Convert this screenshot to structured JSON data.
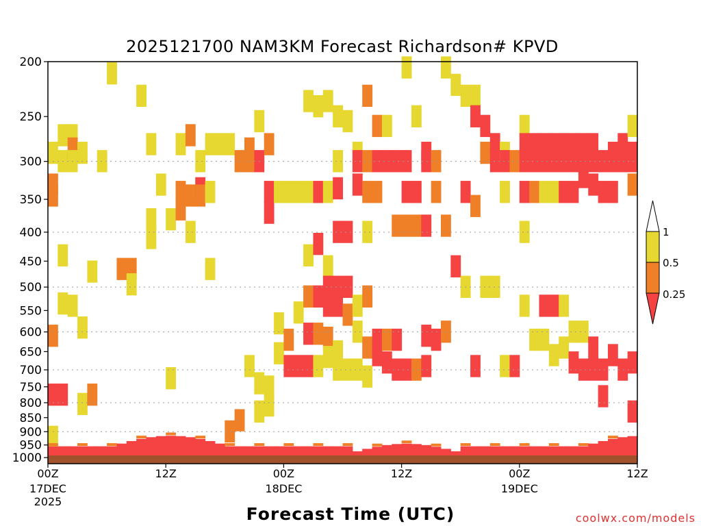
{
  "chart_data": {
    "type": "heatmap",
    "title": "2025121700 NAM3KM Forecast Richardson# KPVD",
    "xlabel": "Forecast Time (UTC)",
    "ylabel": "",
    "y_scale": "log",
    "y_reversed": true,
    "ylim": [
      1025,
      200
    ],
    "y_ticks": [
      200,
      250,
      300,
      350,
      400,
      450,
      500,
      550,
      600,
      650,
      700,
      750,
      800,
      850,
      900,
      950,
      1000
    ],
    "y_gridlines": [
      300,
      400,
      500,
      600,
      700,
      800,
      900
    ],
    "grid": "dotted horizontal",
    "x_hours": [
      0,
      60
    ],
    "x_ticks": [
      {
        "hour": 0,
        "label": "00Z",
        "sub": [
          "17DEC",
          "2025"
        ]
      },
      {
        "hour": 12,
        "label": "12Z",
        "sub": []
      },
      {
        "hour": 24,
        "label": "00Z",
        "sub": [
          "18DEC"
        ]
      },
      {
        "hour": 36,
        "label": "12Z",
        "sub": []
      },
      {
        "hour": 48,
        "label": "00Z",
        "sub": [
          "19DEC"
        ]
      },
      {
        "hour": 60,
        "label": "12Z",
        "sub": []
      }
    ],
    "legend": {
      "placement": "right",
      "labels": [
        "1",
        "0.5",
        "0.25"
      ],
      "classes": [
        {
          "range": "< 0.25",
          "color": "#f54242"
        },
        {
          "range": "0.25 - 0.5",
          "color": "#f08028"
        },
        {
          "range": "0.5 - 1",
          "color": "#e6d830"
        },
        {
          "range": "> 1",
          "color": "#ffffff"
        }
      ]
    },
    "ground_color": "#a0522d",
    "cells": [
      {
        "h": 0,
        "p": 290,
        "c": 2
      },
      {
        "h": 0,
        "p": 330,
        "c": 1
      },
      {
        "h": 0,
        "p": 345,
        "c": 1
      },
      {
        "h": 0,
        "p": 610,
        "c": 1
      },
      {
        "h": 0,
        "p": 775,
        "c": 0
      },
      {
        "h": 0,
        "p": 920,
        "c": 2
      },
      {
        "h": 1,
        "p": 270,
        "c": 2
      },
      {
        "h": 1,
        "p": 300,
        "c": 2
      },
      {
        "h": 1,
        "p": 440,
        "c": 2
      },
      {
        "h": 1,
        "p": 535,
        "c": 2
      },
      {
        "h": 1,
        "p": 775,
        "c": 0
      },
      {
        "h": 2,
        "p": 270,
        "c": 2
      },
      {
        "h": 2,
        "p": 285,
        "c": 1
      },
      {
        "h": 2,
        "p": 300,
        "c": 2
      },
      {
        "h": 2,
        "p": 540,
        "c": 2
      },
      {
        "h": 3,
        "p": 290,
        "c": 2
      },
      {
        "h": 3,
        "p": 590,
        "c": 2
      },
      {
        "h": 3,
        "p": 805,
        "c": 2
      },
      {
        "h": 4,
        "p": 470,
        "c": 2
      },
      {
        "h": 4,
        "p": 775,
        "c": 1
      },
      {
        "h": 5,
        "p": 300,
        "c": 2
      },
      {
        "h": 6,
        "p": 210,
        "c": 2
      },
      {
        "h": 7,
        "p": 465,
        "c": 1
      },
      {
        "h": 8,
        "p": 465,
        "c": 1
      },
      {
        "h": 8,
        "p": 495,
        "c": 2
      },
      {
        "h": 9,
        "p": 230,
        "c": 2
      },
      {
        "h": 10,
        "p": 280,
        "c": 2
      },
      {
        "h": 10,
        "p": 380,
        "c": 2
      },
      {
        "h": 10,
        "p": 410,
        "c": 2
      },
      {
        "h": 11,
        "p": 330,
        "c": 2
      },
      {
        "h": 12,
        "p": 380,
        "c": 2
      },
      {
        "h": 12,
        "p": 725,
        "c": 2
      },
      {
        "h": 13,
        "p": 280,
        "c": 2
      },
      {
        "h": 13,
        "p": 340,
        "c": 1
      },
      {
        "h": 13,
        "p": 365,
        "c": 1
      },
      {
        "h": 14,
        "p": 270,
        "c": 1
      },
      {
        "h": 14,
        "p": 345,
        "c": 1
      },
      {
        "h": 14,
        "p": 400,
        "c": 2
      },
      {
        "h": 15,
        "p": 300,
        "c": 2
      },
      {
        "h": 15,
        "p": 335,
        "c": 0
      },
      {
        "h": 15,
        "p": 345,
        "c": 1
      },
      {
        "h": 16,
        "p": 280,
        "c": 2
      },
      {
        "h": 16,
        "p": 340,
        "c": 2
      },
      {
        "h": 16,
        "p": 465,
        "c": 2
      },
      {
        "h": 17,
        "p": 280,
        "c": 2
      },
      {
        "h": 18,
        "p": 280,
        "c": 2
      },
      {
        "h": 18,
        "p": 900,
        "c": 1
      },
      {
        "h": 19,
        "p": 300,
        "c": 1
      },
      {
        "h": 19,
        "p": 860,
        "c": 1
      },
      {
        "h": 20,
        "p": 285,
        "c": 1
      },
      {
        "h": 20,
        "p": 300,
        "c": 1
      },
      {
        "h": 20,
        "p": 690,
        "c": 2
      },
      {
        "h": 21,
        "p": 255,
        "c": 2
      },
      {
        "h": 21,
        "p": 300,
        "c": 0
      },
      {
        "h": 21,
        "p": 740,
        "c": 2
      },
      {
        "h": 21,
        "p": 830,
        "c": 2
      },
      {
        "h": 22,
        "p": 280,
        "c": 1
      },
      {
        "h": 22,
        "p": 340,
        "c": 0
      },
      {
        "h": 22,
        "p": 370,
        "c": 0
      },
      {
        "h": 22,
        "p": 750,
        "c": 2
      },
      {
        "h": 22,
        "p": 810,
        "c": 2
      },
      {
        "h": 23,
        "p": 340,
        "c": 2
      },
      {
        "h": 23,
        "p": 580,
        "c": 2
      },
      {
        "h": 23,
        "p": 655,
        "c": 2
      },
      {
        "h": 24,
        "p": 340,
        "c": 2
      },
      {
        "h": 24,
        "p": 620,
        "c": 1
      },
      {
        "h": 24,
        "p": 690,
        "c": 0
      },
      {
        "h": 25,
        "p": 340,
        "c": 2
      },
      {
        "h": 25,
        "p": 555,
        "c": 2
      },
      {
        "h": 25,
        "p": 690,
        "c": 0
      },
      {
        "h": 26,
        "p": 235,
        "c": 2
      },
      {
        "h": 26,
        "p": 340,
        "c": 2
      },
      {
        "h": 26,
        "p": 440,
        "c": 2
      },
      {
        "h": 26,
        "p": 520,
        "c": 1
      },
      {
        "h": 26,
        "p": 605,
        "c": 0
      },
      {
        "h": 26,
        "p": 690,
        "c": 0
      },
      {
        "h": 27,
        "p": 240,
        "c": 2
      },
      {
        "h": 27,
        "p": 340,
        "c": 0
      },
      {
        "h": 27,
        "p": 420,
        "c": 0
      },
      {
        "h": 27,
        "p": 520,
        "c": 0
      },
      {
        "h": 27,
        "p": 605,
        "c": 1
      },
      {
        "h": 27,
        "p": 690,
        "c": 2
      },
      {
        "h": 28,
        "p": 235,
        "c": 2
      },
      {
        "h": 28,
        "p": 340,
        "c": 2
      },
      {
        "h": 28,
        "p": 460,
        "c": 2
      },
      {
        "h": 28,
        "p": 500,
        "c": 0
      },
      {
        "h": 28,
        "p": 540,
        "c": 0
      },
      {
        "h": 28,
        "p": 615,
        "c": 1
      },
      {
        "h": 28,
        "p": 665,
        "c": 2
      },
      {
        "h": 29,
        "p": 250,
        "c": 2
      },
      {
        "h": 29,
        "p": 300,
        "c": 2
      },
      {
        "h": 29,
        "p": 335,
        "c": 0
      },
      {
        "h": 29,
        "p": 400,
        "c": 0
      },
      {
        "h": 29,
        "p": 500,
        "c": 0
      },
      {
        "h": 29,
        "p": 540,
        "c": 0
      },
      {
        "h": 29,
        "p": 650,
        "c": 2
      },
      {
        "h": 29,
        "p": 700,
        "c": 2
      },
      {
        "h": 30,
        "p": 255,
        "c": 2
      },
      {
        "h": 30,
        "p": 400,
        "c": 0
      },
      {
        "h": 30,
        "p": 500,
        "c": 0
      },
      {
        "h": 30,
        "p": 560,
        "c": 1
      },
      {
        "h": 30,
        "p": 700,
        "c": 2
      },
      {
        "h": 31,
        "p": 290,
        "c": 2
      },
      {
        "h": 31,
        "p": 300,
        "c": 0
      },
      {
        "h": 31,
        "p": 330,
        "c": 0
      },
      {
        "h": 31,
        "p": 540,
        "c": 2
      },
      {
        "h": 31,
        "p": 600,
        "c": 2
      },
      {
        "h": 31,
        "p": 700,
        "c": 2
      },
      {
        "h": 32,
        "p": 230,
        "c": 1
      },
      {
        "h": 32,
        "p": 300,
        "c": 1
      },
      {
        "h": 32,
        "p": 340,
        "c": 1
      },
      {
        "h": 32,
        "p": 400,
        "c": 2
      },
      {
        "h": 32,
        "p": 520,
        "c": 1
      },
      {
        "h": 32,
        "p": 640,
        "c": 1
      },
      {
        "h": 32,
        "p": 720,
        "c": 2
      },
      {
        "h": 33,
        "p": 260,
        "c": 1
      },
      {
        "h": 33,
        "p": 300,
        "c": 0
      },
      {
        "h": 33,
        "p": 340,
        "c": 1
      },
      {
        "h": 33,
        "p": 620,
        "c": 0
      },
      {
        "h": 33,
        "p": 660,
        "c": 0
      },
      {
        "h": 34,
        "p": 260,
        "c": 2
      },
      {
        "h": 34,
        "p": 300,
        "c": 0
      },
      {
        "h": 34,
        "p": 620,
        "c": 1
      },
      {
        "h": 34,
        "p": 680,
        "c": 0
      },
      {
        "h": 35,
        "p": 300,
        "c": 0
      },
      {
        "h": 35,
        "p": 390,
        "c": 1
      },
      {
        "h": 35,
        "p": 620,
        "c": 0
      },
      {
        "h": 35,
        "p": 700,
        "c": 0
      },
      {
        "h": 36,
        "p": 205,
        "c": 2
      },
      {
        "h": 36,
        "p": 300,
        "c": 0
      },
      {
        "h": 36,
        "p": 340,
        "c": 0
      },
      {
        "h": 36,
        "p": 390,
        "c": 1
      },
      {
        "h": 36,
        "p": 700,
        "c": 0
      },
      {
        "h": 37,
        "p": 250,
        "c": 2
      },
      {
        "h": 37,
        "p": 340,
        "c": 0
      },
      {
        "h": 37,
        "p": 390,
        "c": 1
      },
      {
        "h": 37,
        "p": 700,
        "c": 1
      },
      {
        "h": 38,
        "p": 290,
        "c": 0
      },
      {
        "h": 38,
        "p": 300,
        "c": 0
      },
      {
        "h": 38,
        "p": 390,
        "c": 0
      },
      {
        "h": 38,
        "p": 610,
        "c": 0
      },
      {
        "h": 38,
        "p": 690,
        "c": 0
      },
      {
        "h": 39,
        "p": 300,
        "c": 1
      },
      {
        "h": 39,
        "p": 340,
        "c": 1
      },
      {
        "h": 39,
        "p": 620,
        "c": 0
      },
      {
        "h": 40,
        "p": 205,
        "c": 2
      },
      {
        "h": 40,
        "p": 390,
        "c": 1
      },
      {
        "h": 40,
        "p": 600,
        "c": 1
      },
      {
        "h": 41,
        "p": 220,
        "c": 2
      },
      {
        "h": 41,
        "p": 460,
        "c": 0
      },
      {
        "h": 42,
        "p": 230,
        "c": 2
      },
      {
        "h": 42,
        "p": 340,
        "c": 0
      },
      {
        "h": 42,
        "p": 500,
        "c": 2
      },
      {
        "h": 43,
        "p": 230,
        "c": 2
      },
      {
        "h": 43,
        "p": 250,
        "c": 0
      },
      {
        "h": 43,
        "p": 360,
        "c": 1
      },
      {
        "h": 43,
        "p": 690,
        "c": 0
      },
      {
        "h": 44,
        "p": 260,
        "c": 0
      },
      {
        "h": 44,
        "p": 290,
        "c": 1
      },
      {
        "h": 44,
        "p": 500,
        "c": 2
      },
      {
        "h": 45,
        "p": 280,
        "c": 0
      },
      {
        "h": 45,
        "p": 300,
        "c": 0
      },
      {
        "h": 45,
        "p": 500,
        "c": 2
      },
      {
        "h": 46,
        "p": 290,
        "c": 2
      },
      {
        "h": 46,
        "p": 300,
        "c": 0
      },
      {
        "h": 46,
        "p": 340,
        "c": 2
      },
      {
        "h": 46,
        "p": 690,
        "c": 2
      },
      {
        "h": 47,
        "p": 300,
        "c": 1
      },
      {
        "h": 47,
        "p": 690,
        "c": 0
      },
      {
        "h": 48,
        "p": 260,
        "c": 2
      },
      {
        "h": 48,
        "p": 280,
        "c": 0
      },
      {
        "h": 48,
        "p": 300,
        "c": 0
      },
      {
        "h": 48,
        "p": 340,
        "c": 0
      },
      {
        "h": 48,
        "p": 400,
        "c": 2
      },
      {
        "h": 48,
        "p": 540,
        "c": 2
      },
      {
        "h": 49,
        "p": 280,
        "c": 0
      },
      {
        "h": 49,
        "p": 300,
        "c": 0
      },
      {
        "h": 49,
        "p": 340,
        "c": 1
      },
      {
        "h": 49,
        "p": 620,
        "c": 2
      },
      {
        "h": 50,
        "p": 280,
        "c": 0
      },
      {
        "h": 50,
        "p": 300,
        "c": 0
      },
      {
        "h": 50,
        "p": 340,
        "c": 2
      },
      {
        "h": 50,
        "p": 540,
        "c": 0
      },
      {
        "h": 50,
        "p": 620,
        "c": 2
      },
      {
        "h": 51,
        "p": 280,
        "c": 0
      },
      {
        "h": 51,
        "p": 300,
        "c": 0
      },
      {
        "h": 51,
        "p": 340,
        "c": 2
      },
      {
        "h": 51,
        "p": 540,
        "c": 0
      },
      {
        "h": 51,
        "p": 660,
        "c": 2
      },
      {
        "h": 52,
        "p": 280,
        "c": 0
      },
      {
        "h": 52,
        "p": 300,
        "c": 0
      },
      {
        "h": 52,
        "p": 340,
        "c": 0
      },
      {
        "h": 52,
        "p": 540,
        "c": 2
      },
      {
        "h": 52,
        "p": 640,
        "c": 2
      },
      {
        "h": 53,
        "p": 280,
        "c": 0
      },
      {
        "h": 53,
        "p": 300,
        "c": 0
      },
      {
        "h": 53,
        "p": 340,
        "c": 0
      },
      {
        "h": 53,
        "p": 600,
        "c": 2
      },
      {
        "h": 53,
        "p": 680,
        "c": 0
      },
      {
        "h": 54,
        "p": 280,
        "c": 0
      },
      {
        "h": 54,
        "p": 300,
        "c": 0
      },
      {
        "h": 54,
        "p": 320,
        "c": 0
      },
      {
        "h": 54,
        "p": 600,
        "c": 2
      },
      {
        "h": 54,
        "p": 700,
        "c": 0
      },
      {
        "h": 55,
        "p": 280,
        "c": 0
      },
      {
        "h": 55,
        "p": 300,
        "c": 0
      },
      {
        "h": 55,
        "p": 330,
        "c": 0
      },
      {
        "h": 55,
        "p": 640,
        "c": 0
      },
      {
        "h": 55,
        "p": 700,
        "c": 0
      },
      {
        "h": 56,
        "p": 300,
        "c": 0
      },
      {
        "h": 56,
        "p": 340,
        "c": 0
      },
      {
        "h": 56,
        "p": 700,
        "c": 0
      },
      {
        "h": 56,
        "p": 780,
        "c": 0
      },
      {
        "h": 57,
        "p": 290,
        "c": 0
      },
      {
        "h": 57,
        "p": 300,
        "c": 0
      },
      {
        "h": 57,
        "p": 340,
        "c": 0
      },
      {
        "h": 57,
        "p": 660,
        "c": 0
      },
      {
        "h": 58,
        "p": 280,
        "c": 0
      },
      {
        "h": 58,
        "p": 300,
        "c": 0
      },
      {
        "h": 58,
        "p": 700,
        "c": 0
      },
      {
        "h": 59,
        "p": 260,
        "c": 2
      },
      {
        "h": 59,
        "p": 290,
        "c": 0
      },
      {
        "h": 59,
        "p": 300,
        "c": 0
      },
      {
        "h": 59,
        "p": 330,
        "c": 1
      },
      {
        "h": 59,
        "p": 680,
        "c": 0
      },
      {
        "h": 59,
        "p": 830,
        "c": 0
      }
    ]
  },
  "credit": "coolwx.com/models"
}
